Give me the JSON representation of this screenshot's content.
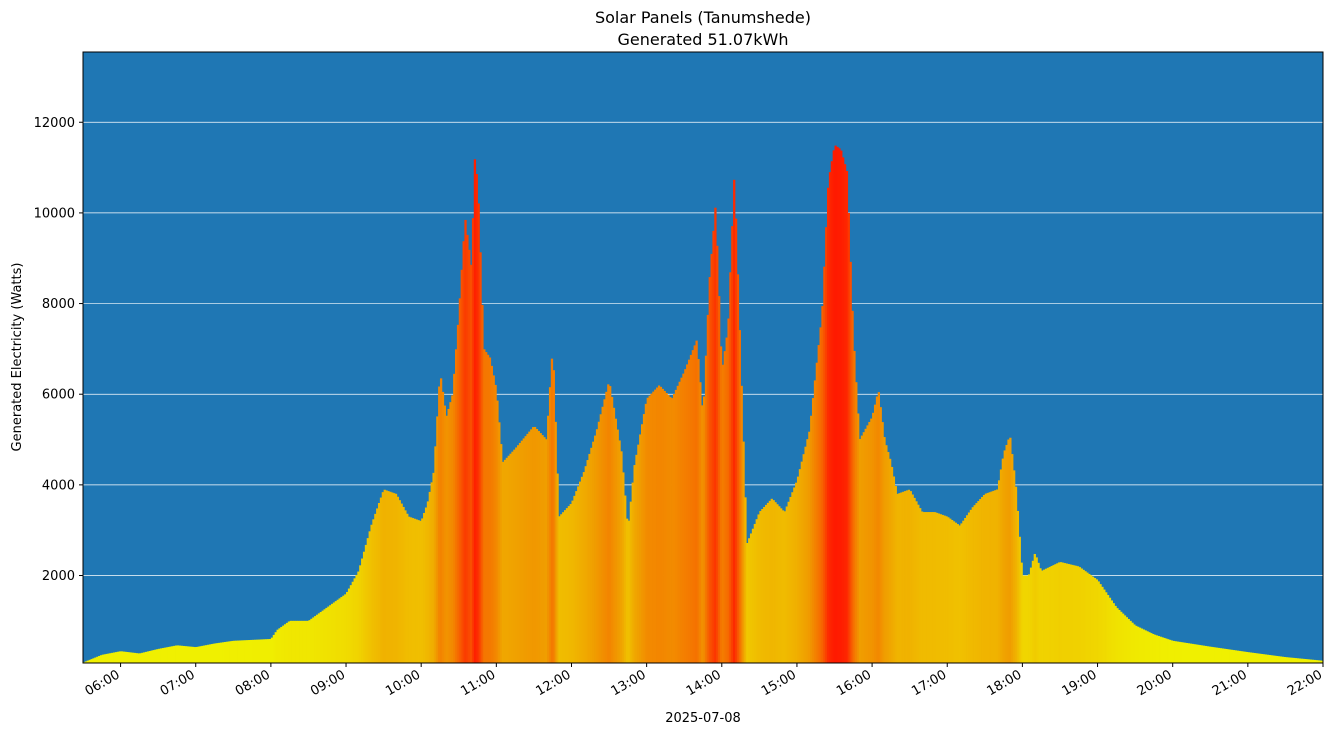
{
  "chart_data": {
    "type": "area",
    "title": "Solar Panels (Tanumshede)",
    "subtitle": "Generated 51.07kWh",
    "xlabel": "2025-07-08",
    "ylabel": "Generated Electricity (Watts)",
    "x_unit": "time of day",
    "xlim": [
      "05:30",
      "22:00"
    ],
    "ylim": [
      70,
      13550
    ],
    "y_ticks": [
      2000,
      4000,
      6000,
      8000,
      10000,
      12000
    ],
    "x_ticks": [
      "06:00",
      "07:00",
      "08:00",
      "09:00",
      "10:00",
      "11:00",
      "12:00",
      "13:00",
      "14:00",
      "15:00",
      "16:00",
      "17:00",
      "18:00",
      "19:00",
      "20:00",
      "21:00",
      "22:00"
    ],
    "grid": "horizontal",
    "background_color": "#1f77b4",
    "grid_color": "#ffffff",
    "colormap": {
      "low": "#f0f000",
      "mid": "#f0a000",
      "high": "#ff1a00"
    },
    "series": [
      {
        "x": [
          "05:30",
          "05:45",
          "06:00",
          "06:15",
          "06:30",
          "06:45",
          "07:00",
          "07:15",
          "07:30",
          "07:45",
          "08:00",
          "08:05",
          "08:15",
          "08:30",
          "08:45",
          "09:00",
          "09:10",
          "09:20",
          "09:30",
          "09:40",
          "09:50",
          "10:00",
          "10:05",
          "10:10",
          "10:15",
          "10:20",
          "10:25",
          "10:30",
          "10:35",
          "10:40",
          "10:43",
          "10:46",
          "10:50",
          "10:55",
          "11:00",
          "11:05",
          "11:15",
          "11:30",
          "11:40",
          "11:45",
          "11:50",
          "12:00",
          "12:10",
          "12:20",
          "12:30",
          "12:40",
          "12:45",
          "12:50",
          "13:00",
          "13:10",
          "13:20",
          "13:30",
          "13:40",
          "13:45",
          "13:50",
          "13:55",
          "14:00",
          "14:05",
          "14:10",
          "14:20",
          "14:30",
          "14:40",
          "14:50",
          "15:00",
          "15:10",
          "15:20",
          "15:25",
          "15:30",
          "15:35",
          "15:40",
          "15:45",
          "15:50",
          "16:00",
          "16:05",
          "16:10",
          "16:15",
          "16:20",
          "16:30",
          "16:40",
          "16:50",
          "17:00",
          "17:10",
          "17:20",
          "17:30",
          "17:40",
          "17:45",
          "17:50",
          "17:55",
          "18:00",
          "18:05",
          "18:10",
          "18:15",
          "18:30",
          "18:45",
          "19:00",
          "19:15",
          "19:30",
          "19:45",
          "20:00",
          "20:30",
          "21:00",
          "21:30",
          "22:00"
        ],
        "y": [
          80,
          250,
          330,
          280,
          380,
          460,
          420,
          500,
          560,
          580,
          600,
          800,
          1000,
          1000,
          1300,
          1600,
          2100,
          3100,
          3900,
          3800,
          3300,
          3200,
          3600,
          4300,
          6500,
          5500,
          6000,
          7800,
          9900,
          8800,
          11400,
          10100,
          7000,
          6800,
          6100,
          4500,
          4800,
          5300,
          5000,
          7100,
          3300,
          3600,
          4300,
          5200,
          6300,
          4700,
          3000,
          4400,
          5900,
          6200,
          5900,
          6500,
          7200,
          5500,
          8500,
          10200,
          6500,
          7500,
          10900,
          2700,
          3400,
          3700,
          3400,
          4100,
          5200,
          7800,
          10700,
          11500,
          11400,
          10900,
          7300,
          5000,
          5500,
          6100,
          5000,
          4500,
          3800,
          3900,
          3400,
          3400,
          3300,
          3100,
          3500,
          3800,
          3900,
          4700,
          5100,
          3900,
          2000,
          2000,
          2500,
          2100,
          2300,
          2200,
          1900,
          1300,
          900,
          700,
          560,
          430,
          310,
          200,
          120
        ]
      }
    ]
  }
}
